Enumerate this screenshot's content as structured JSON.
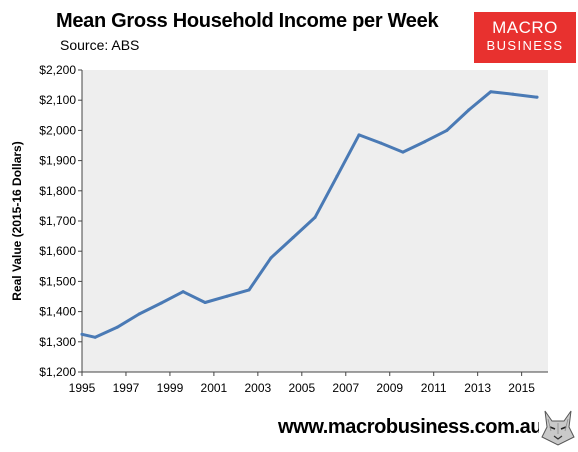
{
  "header": {
    "title": "Mean Gross Household Income per Week",
    "source": "Source: ABS"
  },
  "logo": {
    "line1": "MACRO",
    "line2": "BUSINESS",
    "color": "#e8312f"
  },
  "footer": {
    "website": "www.macrobusiness.com.au",
    "mascot_icon": "wolf-icon"
  },
  "chart_data": {
    "type": "line",
    "title": "Mean Gross Household Income per Week",
    "subtitle": "Source: ABS",
    "xlabel": "",
    "ylabel": "Real Value (2015-16 Dollars)",
    "xlim": [
      1995,
      2016.2
    ],
    "ylim": [
      1200,
      2200
    ],
    "x_ticks": [
      "1995",
      "1997",
      "1999",
      "2001",
      "2003",
      "2005",
      "2007",
      "2009",
      "2011",
      "2013",
      "2015"
    ],
    "y_ticks": [
      "$1,200",
      "$1,300",
      "$1,400",
      "$1,500",
      "$1,600",
      "$1,700",
      "$1,800",
      "$1,900",
      "$2,000",
      "$2,100",
      "$2,200"
    ],
    "grid": false,
    "legend": "none",
    "plot_background": "#eeeeee",
    "line_color": "#4a7ab5",
    "series": [
      {
        "x": [
          1995,
          1995.6,
          1996.6,
          1997.6,
          1998.6,
          1999.6,
          2000.6,
          2001.6,
          2002.6,
          2003.6,
          2004.6,
          2005.6,
          2006.6,
          2007.6,
          2008.6,
          2009.6,
          2010.6,
          2011.6,
          2012.6,
          2013.6,
          2014.6,
          2015.7
        ],
        "values": [
          1325,
          1315,
          1348,
          1392,
          1428,
          1466,
          1430,
          1451,
          1472,
          1578,
          1645,
          1712,
          1848,
          1985,
          1958,
          1928,
          1963,
          2000,
          2068,
          2128,
          2120,
          2110
        ]
      }
    ]
  }
}
